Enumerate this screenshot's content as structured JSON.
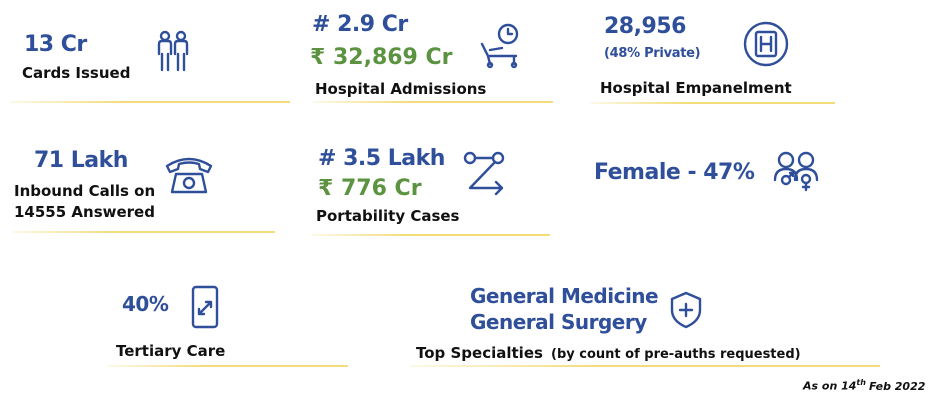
{
  "cards": [
    {
      "value": "13 Cr",
      "label": "Cards Issued"
    },
    {
      "count": "# 2.9 Cr",
      "amount": "₹ 32,869 Cr",
      "label": "Hospital Admissions"
    },
    {
      "value": "28,956",
      "note": "(48% Private)",
      "label": "Hospital Empanelment"
    },
    {
      "value": "71 Lakh",
      "label_line1": "Inbound Calls on",
      "label_line2": "14555 Answered"
    },
    {
      "count": "# 3.5 Lakh",
      "amount": "₹ 776 Cr",
      "label": "Portability Cases"
    },
    {
      "value": "Female - 47%"
    },
    {
      "value": "40%",
      "label": "Tertiary Care"
    },
    {
      "line1": "General Medicine",
      "line2": "General Surgery",
      "label": "Top Specialties",
      "label_note": "(by count of pre-auths requested)"
    }
  ],
  "footer": {
    "prefix": "As on 14",
    "superscript": "th",
    "suffix": "Feb 2022"
  }
}
